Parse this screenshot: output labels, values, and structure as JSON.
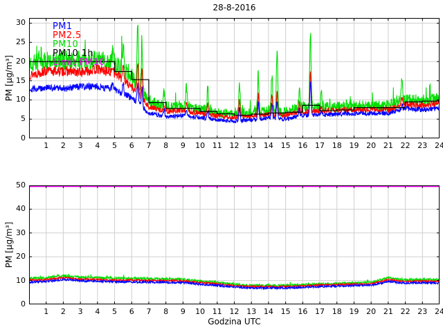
{
  "title": "28-8-2016",
  "xlabel": "Godzina UTC",
  "legend": [
    {
      "label": "PM1",
      "color": "#0000ff"
    },
    {
      "label": "PM2.5",
      "color": "#ff0000"
    },
    {
      "label": "PM10",
      "color": "#00dd00"
    },
    {
      "label": "PM10 1h",
      "color": "#000000"
    },
    {
      "label": "Limit PM10",
      "color": "#ff00ff"
    }
  ],
  "chart_data": [
    {
      "type": "line",
      "title": "28-8-2016",
      "xlabel": "",
      "ylabel": "PM [μg/m³]",
      "xlim": [
        0,
        24
      ],
      "ylim": [
        0,
        31.35
      ],
      "xticks": [
        1,
        2,
        3,
        4,
        5,
        6,
        7,
        8,
        9,
        10,
        11,
        12,
        13,
        14,
        15,
        16,
        17,
        18,
        19,
        20,
        21,
        22,
        23,
        24
      ],
      "yticks": [
        0,
        5,
        10,
        15,
        20,
        25,
        30
      ],
      "grid": true,
      "legend_position": "upper-left-inside",
      "noise": {
        "PM10": 1.4,
        "PM2.5": 0.75,
        "PM1": 0.65
      },
      "series": [
        {
          "name": "PM1",
          "color": "#0000ff",
          "hourly": [
            12.8,
            13.2,
            13,
            13.4,
            13.5,
            12.8,
            10.5,
            6.6,
            5.6,
            6.0,
            5.4,
            4.8,
            4.4,
            4.8,
            5.2,
            5.0,
            6.0,
            6.0,
            6.3,
            6.5,
            6.5,
            6.5,
            7.8,
            7.4,
            7.9
          ]
        },
        {
          "name": "PM2.5",
          "color": "#ff0000",
          "hourly": [
            16.5,
            17.5,
            17.5,
            17.2,
            18,
            17,
            13.5,
            8.2,
            7.0,
            7.3,
            6.5,
            5.8,
            5.4,
            5.8,
            6.2,
            6.0,
            7.0,
            7.0,
            7.3,
            7.5,
            7.5,
            7.5,
            8.8,
            8.6,
            9.2
          ]
        },
        {
          "name": "PM10",
          "color": "#00dd00",
          "hourly": [
            19.5,
            20,
            20,
            20.2,
            20.3,
            19.5,
            16,
            9.5,
            8.2,
            8.5,
            7.6,
            6.8,
            6.3,
            6.8,
            7.2,
            7.0,
            8.2,
            8.0,
            8.3,
            8.5,
            8.5,
            8.5,
            10,
            9.8,
            10.3
          ]
        },
        {
          "name": "PM10 1h",
          "color": "#000000",
          "style": "step",
          "values": [
            20,
            20,
            20,
            20,
            20,
            17.4,
            15.3,
            9.3,
            7.8,
            7.8,
            7.0,
            6.4,
            6.0,
            6.3,
            6.6,
            6.8,
            8.6,
            7.2,
            7.4,
            8.0,
            8.0,
            8.0,
            9.5,
            9.7
          ]
        }
      ],
      "spikes": [
        {
          "t": 4.9,
          "PM10": 23.0,
          "PM2.5": 19.0,
          "PM1": 14.5
        },
        {
          "t": 5.5,
          "PM10": 24.5,
          "PM2.5": 19.5,
          "PM1": 14.5
        },
        {
          "t": 6.35,
          "PM10": 30.8,
          "PM2.5": 20.0,
          "PM1": 14.0
        },
        {
          "t": 6.6,
          "PM10": 25.0,
          "PM2.5": 18.5,
          "PM1": 13.0
        },
        {
          "t": 7.9,
          "PM10": 12.0,
          "PM2.5": 9.0,
          "PM1": 7.5
        },
        {
          "t": 9.2,
          "PM10": 14.0,
          "PM2.5": 9.5,
          "PM1": 7.5
        },
        {
          "t": 10.45,
          "PM10": 13.5,
          "PM2.5": 9.0,
          "PM1": 7.0
        },
        {
          "t": 12.3,
          "PM10": 13.8,
          "PM2.5": 10.0,
          "PM1": 8.0
        },
        {
          "t": 13.4,
          "PM10": 16.5,
          "PM2.5": 11.5,
          "PM1": 9.5
        },
        {
          "t": 14.2,
          "PM10": 16.5,
          "PM2.5": 11.0,
          "PM1": 9.0
        },
        {
          "t": 14.5,
          "PM10": 23.7,
          "PM2.5": 12.0,
          "PM1": 9.5
        },
        {
          "t": 15.8,
          "PM10": 12.5,
          "PM2.5": 9.0,
          "PM1": 7.5
        },
        {
          "t": 16.45,
          "PM10": 28.0,
          "PM2.5": 17.0,
          "PM1": 14.5
        },
        {
          "t": 17.1,
          "PM10": 11.7,
          "PM2.5": 8.5,
          "PM1": 7.0
        },
        {
          "t": 21.8,
          "PM10": 15.6,
          "PM2.5": 11.0,
          "PM1": 9.0
        }
      ]
    },
    {
      "type": "line",
      "title": "",
      "xlabel": "Godzina UTC",
      "ylabel": "PM [μg/m³]",
      "xlim": [
        0,
        24
      ],
      "ylim": [
        0,
        50
      ],
      "xticks": [
        1,
        2,
        3,
        4,
        5,
        6,
        7,
        8,
        9,
        10,
        11,
        12,
        13,
        14,
        15,
        16,
        17,
        18,
        19,
        20,
        21,
        22,
        23,
        24
      ],
      "yticks": [
        0,
        10,
        20,
        30,
        40,
        50
      ],
      "grid": true,
      "noise": {
        "PM10": 0.5,
        "PM2.5": 0.32,
        "PM1": 0.42
      },
      "series": [
        {
          "name": "PM1",
          "color": "#0000ff",
          "hourly": [
            9.3,
            9.6,
            10.4,
            9.9,
            9.7,
            9.5,
            9.4,
            9.3,
            9.2,
            9.1,
            8.5,
            8.0,
            7.2,
            6.9,
            6.9,
            6.9,
            7.1,
            7.5,
            7.7,
            7.9,
            8.0,
            9.6,
            8.9,
            9.1,
            8.9
          ]
        },
        {
          "name": "PM2.5",
          "color": "#ff0000",
          "hourly": [
            10.2,
            10.4,
            11.2,
            10.6,
            10.4,
            10.2,
            10.2,
            10.0,
            10.0,
            9.8,
            9.2,
            8.6,
            7.8,
            7.5,
            7.5,
            7.5,
            7.7,
            8.1,
            8.3,
            8.5,
            8.6,
            10.4,
            9.6,
            9.8,
            9.6
          ]
        },
        {
          "name": "PM10",
          "color": "#00dd00",
          "hourly": [
            11,
            11.2,
            12,
            11.3,
            11.2,
            11,
            11,
            10.8,
            10.7,
            10.5,
            9.8,
            9.2,
            8.4,
            8.0,
            8.0,
            8.0,
            8.2,
            8.6,
            8.8,
            9.0,
            9.2,
            11.2,
            10.2,
            10.5,
            10.2
          ]
        }
      ],
      "limit_line": {
        "name": "Limit PM10",
        "value": 50,
        "color": "#ff00ff"
      }
    }
  ]
}
